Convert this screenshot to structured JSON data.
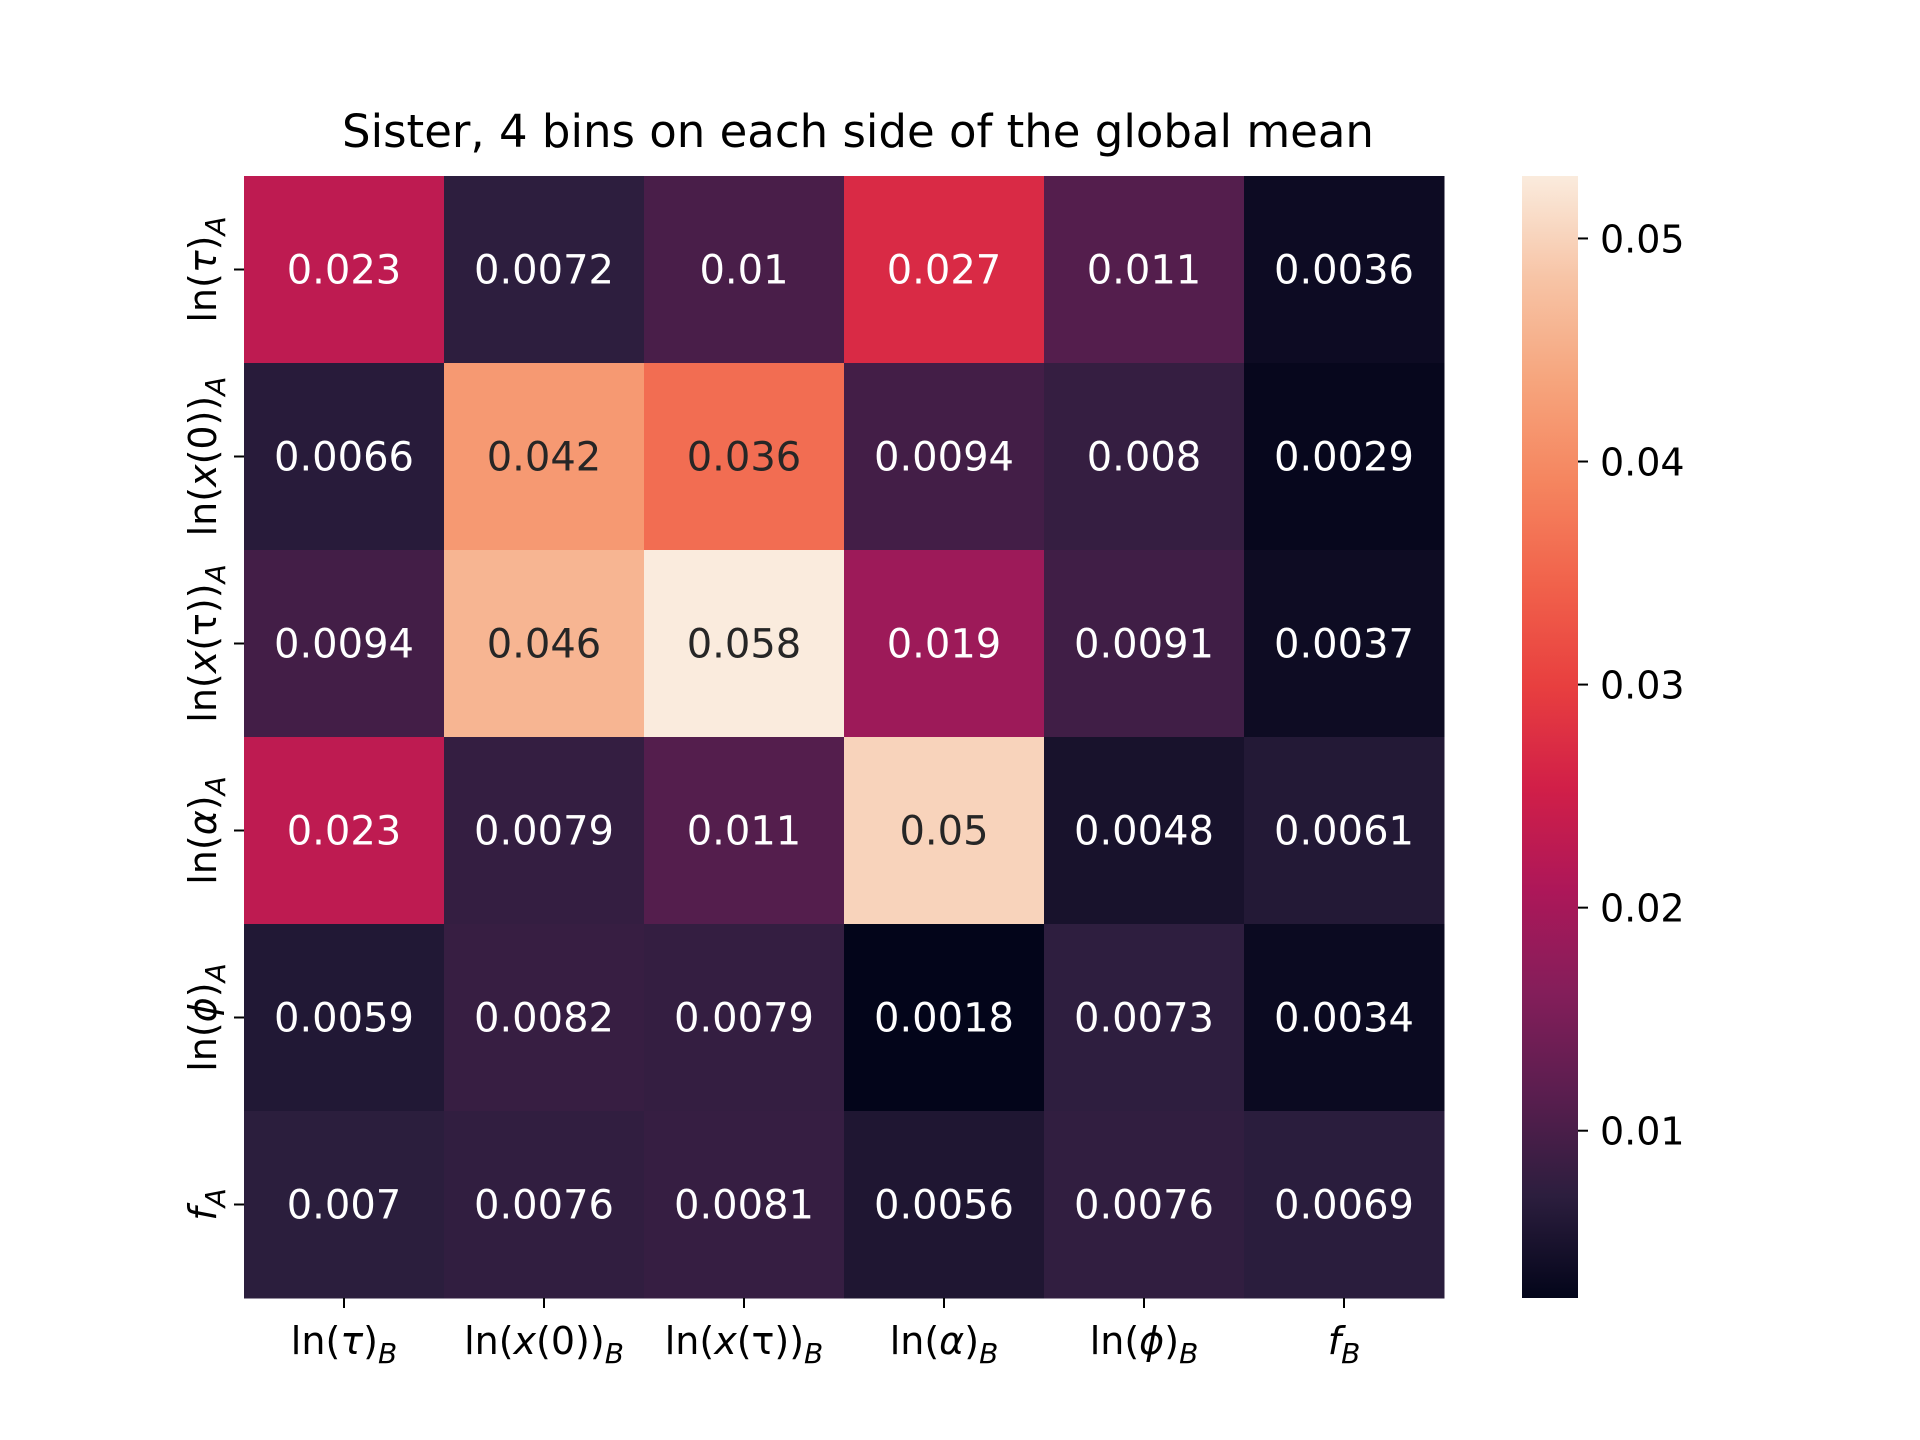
{
  "chart_data": {
    "type": "heatmap",
    "title": "Sister, 4 bins on each side of the global mean",
    "xlabel": "",
    "ylabel": "",
    "x_labels": [
      {
        "base": "ln(",
        "var": "τ",
        "close": ")",
        "sub": "B"
      },
      {
        "base": "ln(",
        "var": "x",
        "close": "(0))",
        "sub": "B"
      },
      {
        "base": "ln(",
        "var": "x",
        "close": "(τ))",
        "sub": "B"
      },
      {
        "base": "ln(",
        "var": "α",
        "close": ")",
        "sub": "B"
      },
      {
        "base": "ln(",
        "var": "ϕ",
        "close": ")",
        "sub": "B"
      },
      {
        "base": "",
        "var": "f",
        "close": "",
        "sub": "B"
      }
    ],
    "y_labels": [
      {
        "base": "ln(",
        "var": "τ",
        "close": ")",
        "sub": "A"
      },
      {
        "base": "ln(",
        "var": "x",
        "close": "(0))",
        "sub": "A"
      },
      {
        "base": "ln(",
        "var": "x",
        "close": "(τ))",
        "sub": "A"
      },
      {
        "base": "ln(",
        "var": "α",
        "close": ")",
        "sub": "A"
      },
      {
        "base": "ln(",
        "var": "ϕ",
        "close": ")",
        "sub": "A"
      },
      {
        "base": "",
        "var": "f",
        "close": "",
        "sub": "A"
      }
    ],
    "values": [
      [
        0.023,
        0.0072,
        0.01,
        0.027,
        0.011,
        0.0036
      ],
      [
        0.0066,
        0.042,
        0.036,
        0.0094,
        0.008,
        0.0029
      ],
      [
        0.0094,
        0.046,
        0.058,
        0.019,
        0.0091,
        0.0037
      ],
      [
        0.023,
        0.0079,
        0.011,
        0.05,
        0.0048,
        0.0061
      ],
      [
        0.0059,
        0.0082,
        0.0079,
        0.0018,
        0.0073,
        0.0034
      ],
      [
        0.007,
        0.0076,
        0.0081,
        0.0056,
        0.0076,
        0.0069
      ]
    ],
    "labels": [
      [
        "0.023",
        "0.0072",
        "0.01",
        "0.027",
        "0.011",
        "0.0036"
      ],
      [
        "0.0066",
        "0.042",
        "0.036",
        "0.0094",
        "0.008",
        "0.0029"
      ],
      [
        "0.0094",
        "0.046",
        "0.058",
        "0.019",
        "0.0091",
        "0.0037"
      ],
      [
        "0.023",
        "0.0079",
        "0.011",
        "0.05",
        "0.0048",
        "0.0061"
      ],
      [
        "0.0059",
        "0.0082",
        "0.0079",
        "0.0018",
        "0.0073",
        "0.0034"
      ],
      [
        "0.007",
        "0.0076",
        "0.0081",
        "0.0056",
        "0.0076",
        "0.0069"
      ]
    ],
    "colorbar": {
      "range": [
        0.0025,
        0.0528
      ],
      "ticks": [
        0.01,
        0.02,
        0.03,
        0.04,
        0.05
      ],
      "tick_labels": [
        "0.01",
        "0.02",
        "0.03",
        "0.04",
        "0.05"
      ],
      "colormap": "rocket",
      "color_stops": [
        "#03051a",
        "#2c1e3e",
        "#5a1e4f",
        "#841e5a",
        "#ad1759",
        "#d11f48",
        "#e83f3f",
        "#f1624b",
        "#f5855f",
        "#f6a57d",
        "#f7c4a6",
        "#faebdd"
      ]
    },
    "grid": false,
    "legend": "colorbar right"
  }
}
